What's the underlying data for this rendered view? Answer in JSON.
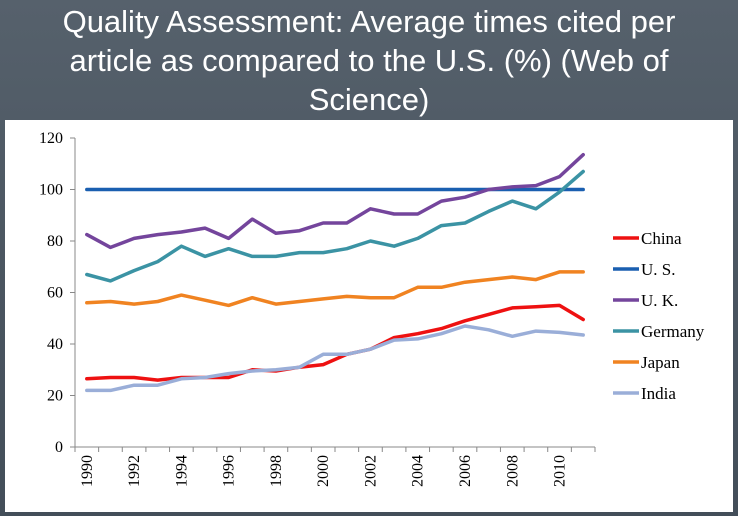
{
  "slide": {
    "title_lines": [
      "Quality Assessment: Average times cited per",
      "article as compared to the U.S. (%) (Web of",
      "Science)"
    ],
    "background_color": "#4d5863",
    "panel_color": "#ffffff"
  },
  "chart_data": {
    "type": "line",
    "title": "Quality Assessment: Average times cited per article as compared to the U.S. (%) (Web of Science)",
    "xlabel": "",
    "ylabel": "",
    "x": [
      1990,
      1991,
      1992,
      1993,
      1994,
      1995,
      1996,
      1997,
      1998,
      1999,
      2000,
      2001,
      2002,
      2003,
      2004,
      2005,
      2006,
      2007,
      2008,
      2009,
      2010,
      2011
    ],
    "x_tick_labels": [
      "1990",
      "1992",
      "1994",
      "1996",
      "1998",
      "2000",
      "2002",
      "2004",
      "2006",
      "2008",
      "2010"
    ],
    "x_tick_values": [
      1990,
      1992,
      1994,
      1996,
      1998,
      2000,
      2002,
      2004,
      2006,
      2008,
      2010
    ],
    "y_tick_labels": [
      "0",
      "20",
      "40",
      "60",
      "80",
      "100",
      "120"
    ],
    "y_tick_values": [
      0,
      20,
      40,
      60,
      80,
      100,
      120
    ],
    "ylim": [
      0,
      120
    ],
    "grid": false,
    "legend_position": "right",
    "series": [
      {
        "name": "China",
        "color": "#ee1111",
        "values": [
          26.5,
          27,
          27,
          26,
          27,
          27,
          27,
          30,
          29.5,
          31,
          32,
          36,
          38,
          42.5,
          44,
          46,
          49,
          51.5,
          54,
          54.5,
          55,
          49.5
        ]
      },
      {
        "name": "U. S.",
        "color": "#1a5fb0",
        "values": [
          100,
          100,
          100,
          100,
          100,
          100,
          100,
          100,
          100,
          100,
          100,
          100,
          100,
          100,
          100,
          100,
          100,
          100,
          100,
          100,
          100,
          100
        ]
      },
      {
        "name": "U. K.",
        "color": "#74459c",
        "values": [
          82.5,
          77.5,
          81,
          82.5,
          83.5,
          85,
          81,
          88.5,
          83,
          84,
          87,
          87,
          92.5,
          90.5,
          90.5,
          95.5,
          97,
          100,
          101,
          101.5,
          105,
          113.5
        ]
      },
      {
        "name": "Germany",
        "color": "#3b93a4",
        "values": [
          67,
          64.5,
          68.5,
          72,
          78,
          74,
          77,
          74,
          74,
          75.5,
          75.5,
          77,
          80,
          78,
          81,
          86,
          87,
          91.5,
          95.5,
          92.5,
          99,
          107
        ]
      },
      {
        "name": "Japan",
        "color": "#f08321",
        "values": [
          56,
          56.5,
          55.5,
          56.5,
          59,
          57,
          55,
          58,
          55.5,
          56.5,
          57.5,
          58.5,
          58,
          58,
          62,
          62,
          64,
          65,
          66,
          65,
          68,
          68
        ]
      },
      {
        "name": "India",
        "color": "#9aaed8",
        "values": [
          22,
          22,
          24,
          24,
          26.5,
          27,
          28.5,
          29.5,
          30,
          31,
          36,
          36,
          38,
          41.5,
          42,
          44,
          47,
          45.5,
          43,
          45,
          44.5,
          43.5
        ]
      }
    ]
  }
}
